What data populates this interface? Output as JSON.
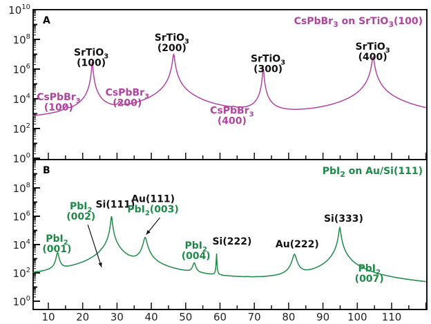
{
  "chart_data": [
    {
      "type": "line",
      "panel_label": "A",
      "title": "CsPbBr3 on SrTiO3(100)",
      "title_parts": [
        {
          "t": "CsPbBr"
        },
        {
          "t": "3",
          "sub": true
        },
        {
          "t": " on SrTiO"
        },
        {
          "t": "3",
          "sub": true
        },
        {
          "t": "(100)"
        }
      ],
      "xlabel": "",
      "ylabel": "",
      "xlim": [
        5.5,
        120
      ],
      "ylim_log10": [
        0,
        10
      ],
      "yticks_log10": [
        0,
        2,
        4,
        6,
        8,
        10
      ],
      "color": "#b0449e",
      "background_log10": {
        "start": 1.75,
        "end": 0.8
      },
      "peaks": [
        {
          "x": 15.2,
          "log10_intensity": 3.2,
          "width": 0.35
        },
        {
          "x": 22.8,
          "log10_intensity": 6.5,
          "width": 0.15
        },
        {
          "x": 30.7,
          "log10_intensity": 3.5,
          "width": 0.35
        },
        {
          "x": 46.5,
          "log10_intensity": 7.0,
          "width": 0.25
        },
        {
          "x": 64.0,
          "log10_intensity": 2.5,
          "width": 0.4
        },
        {
          "x": 72.6,
          "log10_intensity": 6.1,
          "width": 0.15
        },
        {
          "x": 104.6,
          "log10_intensity": 6.8,
          "width": 0.3
        }
      ],
      "annotations": [
        {
          "lines": [
            [
              {
                "t": "CsPbBr"
              },
              {
                "t": "3",
                "sub": true
              }
            ],
            [
              {
                "t": "(100)"
              }
            ]
          ],
          "color": "#b0449e",
          "x": 13,
          "log10_y": 3.9
        },
        {
          "lines": [
            [
              {
                "t": "SrTiO"
              },
              {
                "t": "3",
                "sub": true
              }
            ],
            [
              {
                "t": "(100)"
              }
            ]
          ],
          "color": "#111111",
          "x": 22.5,
          "log10_y": 6.9
        },
        {
          "lines": [
            [
              {
                "t": "CsPbBr"
              },
              {
                "t": "3",
                "sub": true
              }
            ],
            [
              {
                "t": "(200)"
              }
            ]
          ],
          "color": "#b0449e",
          "x": 33,
          "log10_y": 4.2
        },
        {
          "lines": [
            [
              {
                "t": "SrTiO"
              },
              {
                "t": "3",
                "sub": true
              }
            ],
            [
              {
                "t": "(200)"
              }
            ]
          ],
          "color": "#111111",
          "x": 46,
          "log10_y": 7.9
        },
        {
          "lines": [
            [
              {
                "t": "CsPbBr"
              },
              {
                "t": "3",
                "sub": true
              }
            ],
            [
              {
                "t": "(400)"
              }
            ]
          ],
          "color": "#b0449e",
          "x": 63.5,
          "log10_y": 3.0
        },
        {
          "lines": [
            [
              {
                "t": "SrTiO"
              },
              {
                "t": "3",
                "sub": true
              }
            ],
            [
              {
                "t": "(300)"
              }
            ]
          ],
          "color": "#111111",
          "x": 74,
          "log10_y": 6.5
        },
        {
          "lines": [
            [
              {
                "t": "SrTiO"
              },
              {
                "t": "3",
                "sub": true
              }
            ],
            [
              {
                "t": "(400)"
              }
            ]
          ],
          "color": "#111111",
          "x": 104.5,
          "log10_y": 7.3
        }
      ]
    },
    {
      "type": "line",
      "panel_label": "B",
      "title": "PbI2 on Au/Si(111)",
      "title_parts": [
        {
          "t": "PbI"
        },
        {
          "t": "2",
          "sub": true
        },
        {
          "t": " on Au/Si(111)"
        }
      ],
      "xlabel": "",
      "ylabel": "",
      "xlim": [
        5.5,
        120
      ],
      "ylim_log10": [
        -0.6,
        10
      ],
      "xticks": [
        10,
        20,
        30,
        40,
        50,
        60,
        70,
        80,
        90,
        100,
        110
      ],
      "yticks_log10": [
        0,
        2,
        4,
        6,
        8
      ],
      "color": "#1f8a48",
      "background_log10": {
        "start": 1.4,
        "end": 0.4
      },
      "peaks": [
        {
          "x": 12.7,
          "log10_intensity": 3.4,
          "width": 0.35
        },
        {
          "x": 25.5,
          "log10_intensity": 2.2,
          "width": 0.3
        },
        {
          "x": 28.4,
          "log10_intensity": 6.0,
          "width": 0.2
        },
        {
          "x": 38.2,
          "log10_intensity": 4.5,
          "width": 0.45
        },
        {
          "x": 52.5,
          "log10_intensity": 2.6,
          "width": 0.4
        },
        {
          "x": 59.0,
          "log10_intensity": 3.4,
          "width": 0.06
        },
        {
          "x": 81.7,
          "log10_intensity": 3.3,
          "width": 0.5
        },
        {
          "x": 94.9,
          "log10_intensity": 5.2,
          "width": 0.25
        },
        {
          "x": 101.3,
          "log10_intensity": 1.1,
          "width": 0.5
        }
      ],
      "annotations": [
        {
          "lines": [
            [
              {
                "t": "PbI"
              },
              {
                "t": "2",
                "sub": true
              }
            ],
            [
              {
                "t": "(001)"
              }
            ]
          ],
          "color": "#1f8a48",
          "x": 12.5,
          "log10_y": 4.2
        },
        {
          "lines": [
            [
              {
                "t": "PbI"
              },
              {
                "t": "2",
                "sub": true
              }
            ],
            [
              {
                "t": "(002)"
              }
            ]
          ],
          "color": "#1f8a48",
          "x": 19.5,
          "log10_y": 6.5
        },
        {
          "lines": [
            [
              {
                "t": "Si(111)"
              }
            ]
          ],
          "color": "#111111",
          "x": 29.5,
          "log10_y": 6.6
        },
        {
          "lines": [
            [
              {
                "t": "Au(111)"
              }
            ],
            [
              {
                "t": "PbI"
              },
              {
                "t": "2",
                "sub": true
              },
              {
                "t": "(003)"
              }
            ]
          ],
          "color": "#111111",
          "line2_color": "#1f8a48",
          "x": 40.5,
          "log10_y": 7.0
        },
        {
          "lines": [
            [
              {
                "t": "PbI"
              },
              {
                "t": "2",
                "sub": true
              }
            ],
            [
              {
                "t": "(004)"
              }
            ]
          ],
          "color": "#1f8a48",
          "x": 53,
          "log10_y": 3.7
        },
        {
          "lines": [
            [
              {
                "t": "Si(222)"
              }
            ]
          ],
          "color": "#111111",
          "x": 63.5,
          "log10_y": 4.0
        },
        {
          "lines": [
            [
              {
                "t": "Au(222)"
              }
            ]
          ],
          "color": "#111111",
          "x": 82.5,
          "log10_y": 3.8
        },
        {
          "lines": [
            [
              {
                "t": "Si(333)"
              }
            ]
          ],
          "color": "#111111",
          "x": 96,
          "log10_y": 5.6
        },
        {
          "lines": [
            [
              {
                "t": "PbI"
              },
              {
                "t": "2",
                "sub": true
              }
            ],
            [
              {
                "t": "(007)"
              }
            ]
          ],
          "color": "#1f8a48",
          "x": 103.5,
          "log10_y": 2.1
        }
      ],
      "arrows": [
        {
          "from": [
            21.5,
            5.4
          ],
          "to": [
            25.5,
            2.4
          ]
        },
        {
          "from": [
            42.5,
            5.9
          ],
          "to": [
            38.5,
            4.7
          ]
        }
      ]
    }
  ]
}
